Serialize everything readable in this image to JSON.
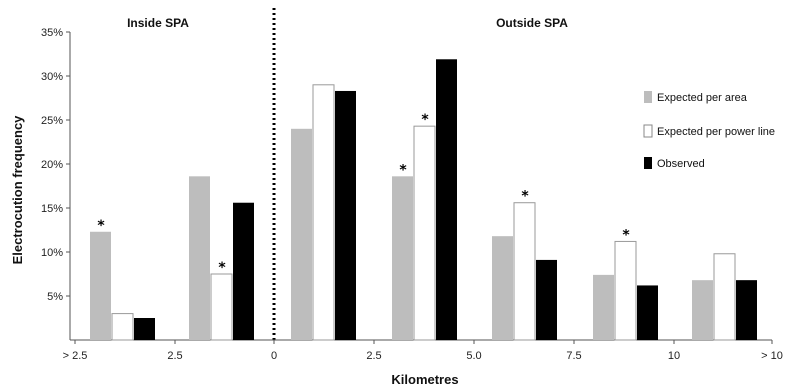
{
  "chart_data": {
    "type": "bar",
    "ylabel": "Electrocution frequency",
    "xlabel": "Kilometres",
    "regions": [
      "Inside SPA",
      "Outside SPA"
    ],
    "x_ticks": [
      "> 2.5",
      "2.5",
      "0",
      "2.5",
      "5.0",
      "7.5",
      "10",
      "> 10"
    ],
    "y_ticks": [
      "5%",
      "10%",
      "15%",
      "20%",
      "25%",
      "30%",
      "35%"
    ],
    "ylim": [
      0,
      35
    ],
    "grid": false,
    "legend_position": "right",
    "series": [
      {
        "name": "Expected per area",
        "color": "#bdbdbd",
        "values": [
          12.3,
          18.6,
          24.0,
          18.6,
          11.8,
          7.4,
          6.8
        ],
        "stars": [
          true,
          false,
          false,
          true,
          false,
          false,
          false
        ]
      },
      {
        "name": "Expected per power line",
        "color": "#ffffff",
        "values": [
          3.0,
          7.5,
          29.0,
          24.3,
          15.6,
          11.2,
          9.8
        ],
        "stars": [
          false,
          true,
          false,
          true,
          true,
          true,
          false
        ]
      },
      {
        "name": "Observed",
        "color": "#000000",
        "values": [
          2.5,
          15.6,
          28.3,
          31.9,
          9.1,
          6.2,
          6.8
        ],
        "stars": [
          false,
          false,
          false,
          false,
          false,
          false,
          false
        ]
      }
    ],
    "star_symbol": "*"
  }
}
